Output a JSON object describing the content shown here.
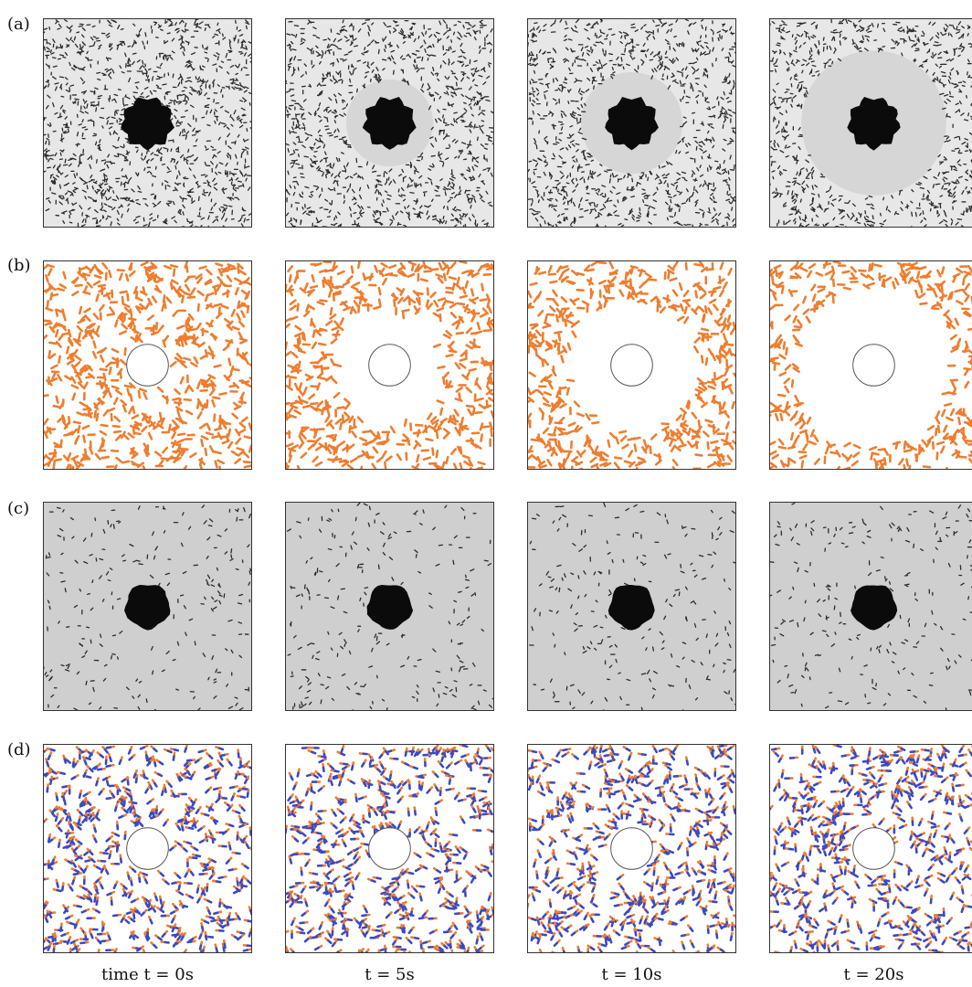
{
  "row_labels": [
    "(a)",
    "(b)",
    "(c)",
    "(d)"
  ],
  "captions": [
    "time t = 0s",
    "t = 5s",
    "t = 10s",
    "t = 20s"
  ],
  "colors": {
    "micrograph_background_a": "#e7e7e7",
    "micrograph_background_c": "#cfcfcf",
    "particle_dark": "#2a2a2a",
    "depletion_zone": "#d6d6d6",
    "obstacle_dark": "#0b0b0b",
    "rod_orange": "#ee7d2f",
    "rod_blue": "#3949c6",
    "obstacle_outline": "#555555"
  }
}
